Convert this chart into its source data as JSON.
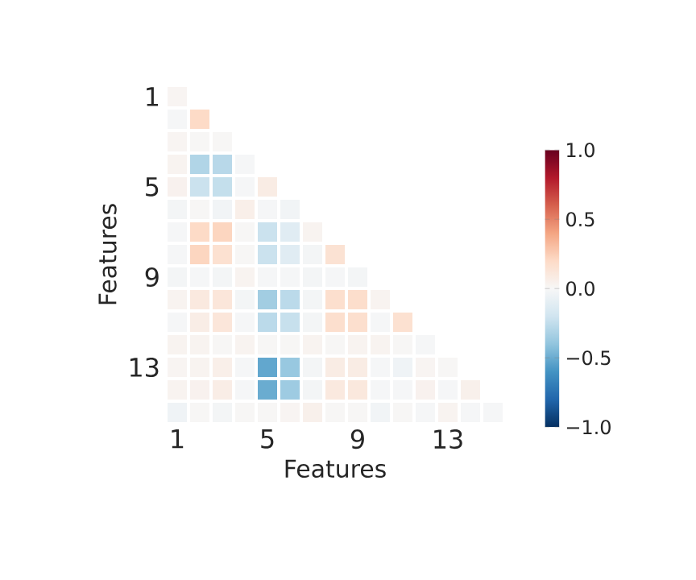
{
  "chart_data": {
    "type": "heatmap",
    "xlabel": "Features",
    "ylabel": "Features",
    "categories": [
      "1",
      null,
      null,
      null,
      "5",
      null,
      null,
      null,
      "9",
      null,
      null,
      null,
      "13",
      null,
      null
    ],
    "y_categories": [
      "1",
      null,
      null,
      null,
      "5",
      null,
      null,
      null,
      "9",
      null,
      null,
      null,
      "13",
      null,
      null
    ],
    "cells": [
      [
        0.02,
        null,
        null,
        null,
        null,
        null,
        null,
        null,
        null,
        null,
        null,
        null,
        null,
        null,
        null
      ],
      [
        -0.01,
        0.2,
        null,
        null,
        null,
        null,
        null,
        null,
        null,
        null,
        null,
        null,
        null,
        null,
        null
      ],
      [
        0.02,
        0.01,
        0.01,
        null,
        null,
        null,
        null,
        null,
        null,
        null,
        null,
        null,
        null,
        null,
        null
      ],
      [
        0.03,
        -0.3,
        -0.28,
        -0.01,
        null,
        null,
        null,
        null,
        null,
        null,
        null,
        null,
        null,
        null,
        null
      ],
      [
        0.04,
        -0.22,
        -0.24,
        -0.01,
        0.08,
        null,
        null,
        null,
        null,
        null,
        null,
        null,
        null,
        null,
        null
      ],
      [
        -0.02,
        0.01,
        -0.03,
        0.06,
        -0.01,
        -0.03,
        null,
        null,
        null,
        null,
        null,
        null,
        null,
        null,
        null
      ],
      [
        -0.01,
        0.2,
        0.22,
        0.01,
        -0.22,
        -0.12,
        0.03,
        null,
        null,
        null,
        null,
        null,
        null,
        null,
        null
      ],
      [
        -0.01,
        0.22,
        0.16,
        0.01,
        -0.22,
        -0.12,
        -0.02,
        0.15,
        null,
        null,
        null,
        null,
        null,
        null,
        null
      ],
      [
        -0.02,
        -0.01,
        -0.02,
        0.03,
        -0.01,
        -0.01,
        -0.02,
        -0.01,
        -0.02,
        null,
        null,
        null,
        null,
        null,
        null
      ],
      [
        0.03,
        0.1,
        0.12,
        -0.02,
        -0.35,
        -0.27,
        -0.02,
        0.17,
        0.18,
        0.03,
        null,
        null,
        null,
        null,
        null
      ],
      [
        -0.01,
        0.07,
        0.12,
        -0.01,
        -0.27,
        -0.23,
        -0.02,
        0.17,
        0.17,
        -0.01,
        0.16,
        null,
        null,
        null,
        null
      ],
      [
        0.03,
        0.03,
        0.01,
        0.03,
        0.01,
        0.01,
        0.03,
        0.01,
        0.03,
        0.03,
        0.01,
        -0.01,
        null,
        null,
        null
      ],
      [
        0.02,
        0.03,
        0.06,
        -0.01,
        -0.52,
        -0.38,
        -0.02,
        0.08,
        0.08,
        -0.01,
        -0.04,
        0.02,
        0.01,
        null,
        null
      ],
      [
        0.03,
        0.04,
        0.07,
        -0.01,
        -0.5,
        -0.36,
        -0.02,
        0.1,
        0.11,
        -0.01,
        -0.01,
        0.04,
        -0.01,
        0.05,
        null
      ],
      [
        -0.04,
        0.01,
        -0.02,
        0.01,
        0.01,
        0.02,
        0.05,
        0.01,
        0.01,
        -0.03,
        0.01,
        -0.01,
        0.03,
        -0.01,
        -0.01
      ]
    ],
    "clim": [
      -1,
      1
    ],
    "cticks": [
      {
        "value": -1,
        "label": "−1.0"
      },
      {
        "value": -0.5,
        "label": "−0.5"
      },
      {
        "value": 0,
        "label": "0.0"
      },
      {
        "value": 0.5,
        "label": "0.5"
      },
      {
        "value": 1,
        "label": "1.0"
      }
    ]
  }
}
